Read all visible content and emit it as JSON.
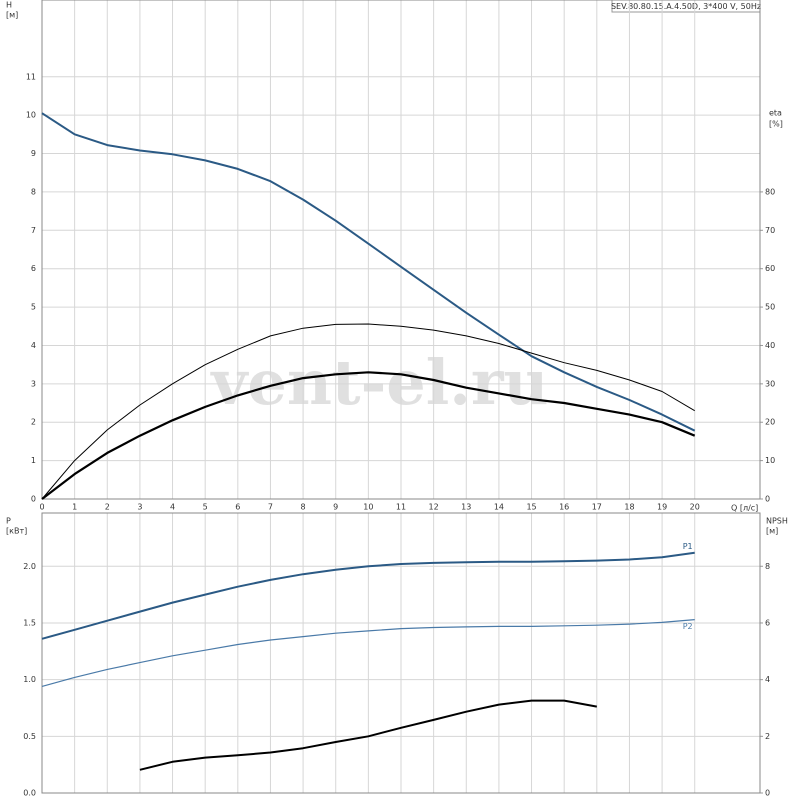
{
  "chart_data": [
    {
      "type": "line",
      "title": "SEV.80.80.15.A.4.50D, 3*400 V, 50Hz",
      "ylabel": "H",
      "yunit": "[м]",
      "y2label": "eta",
      "y2unit": "[%]",
      "xlabel": "Q [л/с]",
      "watermark": "vent-el.ru",
      "grid": true,
      "xlim": [
        0,
        22
      ],
      "xticks": [
        0,
        1,
        2,
        3,
        4,
        5,
        6,
        7,
        8,
        9,
        10,
        11,
        12,
        13,
        14,
        15,
        16,
        17,
        18,
        19,
        20
      ],
      "ylim": [
        0,
        13
      ],
      "yticks": [
        0,
        1,
        2,
        3,
        4,
        5,
        6,
        7,
        8,
        9,
        10,
        11
      ],
      "y2lim": [
        0,
        130
      ],
      "y2ticks": [
        0,
        10,
        20,
        30,
        40,
        50,
        60,
        70,
        80
      ],
      "x": [
        0,
        1,
        2,
        3,
        4,
        5,
        6,
        7,
        8,
        9,
        10,
        11,
        12,
        13,
        14,
        15,
        16,
        17,
        18,
        19,
        20
      ],
      "series": [
        {
          "color": "#2b5a85",
          "line_width": 2,
          "values": [
            10.05,
            9.5,
            9.22,
            9.08,
            8.98,
            8.82,
            8.6,
            8.28,
            7.8,
            7.25,
            6.65,
            6.05,
            5.45,
            4.85,
            4.28,
            3.72,
            3.3,
            2.92,
            2.58,
            2.2,
            1.78
          ]
        },
        {
          "color": "#000000",
          "line_width": 1,
          "axis": "y2",
          "values": [
            0,
            10,
            18,
            24.5,
            30,
            35,
            39,
            42.5,
            44.5,
            45.5,
            45.6,
            45,
            44,
            42.5,
            40.5,
            38,
            35.5,
            33.5,
            31,
            28,
            23
          ]
        },
        {
          "color": "#000000",
          "line_width": 2.2,
          "axis": "y2",
          "values": [
            0,
            6.5,
            12,
            16.5,
            20.5,
            24,
            27,
            29.5,
            31.5,
            32.5,
            33,
            32.5,
            31,
            29,
            27.5,
            26,
            25,
            23.5,
            22,
            20,
            16.5
          ]
        }
      ]
    },
    {
      "type": "line",
      "ylabel": "P",
      "yunit": "[кВт]",
      "y2label": "NPSH",
      "y2unit": "[м]",
      "grid": true,
      "xlim": [
        0,
        22
      ],
      "ylim": [
        0,
        2.47
      ],
      "yticks": [
        {
          "value": 0,
          "label": "0.0"
        },
        0.5,
        {
          "value": 1,
          "label": "1.0"
        },
        1.5,
        {
          "value": 2,
          "label": "2.0"
        }
      ],
      "y2lim": [
        0,
        9.88
      ],
      "y2ticks": [
        0,
        2,
        4,
        6,
        8
      ],
      "x": [
        0,
        1,
        2,
        3,
        4,
        5,
        6,
        7,
        8,
        9,
        10,
        11,
        12,
        13,
        14,
        15,
        16,
        17,
        18,
        19,
        20
      ],
      "series": [
        {
          "name": "P1",
          "color": "#2b5a85",
          "line_width": 2,
          "values": [
            1.36,
            1.44,
            1.52,
            1.6,
            1.68,
            1.75,
            1.82,
            1.88,
            1.93,
            1.97,
            2.0,
            2.02,
            2.03,
            2.035,
            2.04,
            2.04,
            2.045,
            2.05,
            2.06,
            2.08,
            2.12
          ]
        },
        {
          "name": "P2",
          "color": "#4a7aa8",
          "line_width": 1.2,
          "values": [
            0.94,
            1.02,
            1.09,
            1.15,
            1.21,
            1.26,
            1.31,
            1.35,
            1.38,
            1.41,
            1.43,
            1.45,
            1.46,
            1.465,
            1.47,
            1.47,
            1.475,
            1.48,
            1.49,
            1.505,
            1.53
          ]
        },
        {
          "color": "#000000",
          "line_width": 2,
          "axis": "y2",
          "values": [
            null,
            null,
            null,
            0.82,
            1.1,
            1.25,
            1.33,
            1.43,
            1.58,
            1.8,
            2.0,
            2.3,
            2.58,
            2.87,
            3.12,
            3.26,
            3.26,
            3.05,
            null,
            null,
            null
          ]
        }
      ]
    }
  ]
}
